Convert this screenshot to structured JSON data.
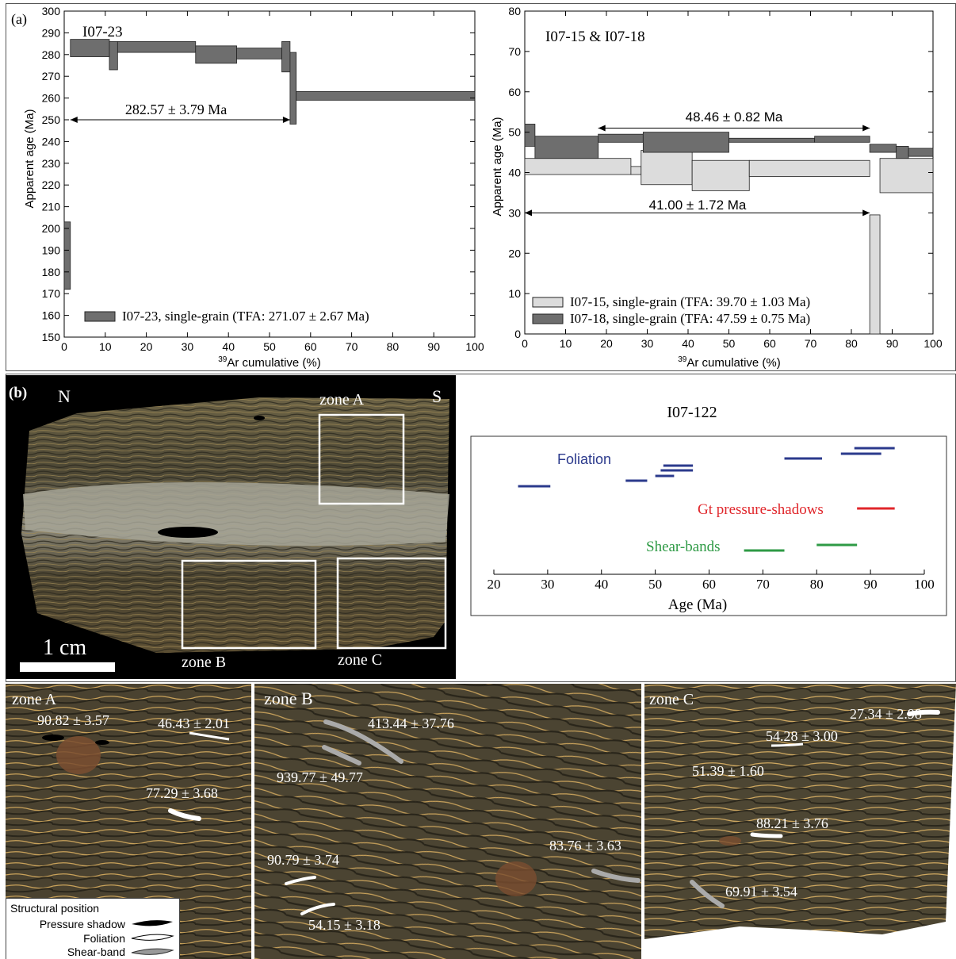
{
  "panel_a": {
    "label": "(a)",
    "left": {
      "sample": "I07-23",
      "plateau": "282.57 ± 3.79 Ma",
      "legend": "I07-23, single-grain (TFA: 271.07 ± 2.67 Ma)",
      "ylabel": "Apparent age (Ma)",
      "xlabel_sup": "39",
      "xlabel": "Ar cumulative (%)",
      "yticks": [
        "150",
        "160",
        "170",
        "180",
        "190",
        "200",
        "210",
        "220",
        "230",
        "240",
        "250",
        "260",
        "270",
        "280",
        "290",
        "300"
      ],
      "xticks": [
        "0",
        "10",
        "20",
        "30",
        "40",
        "50",
        "60",
        "70",
        "80",
        "90",
        "100"
      ]
    },
    "right": {
      "sample": "I07-15 & I07-18",
      "plateau_18": "48.46 ± 0.82 Ma",
      "plateau_15": "41.00 ± 1.72 Ma",
      "legend_15": "I07-15, single-grain (TFA: 39.70 ± 1.03 Ma)",
      "legend_18": "I07-18, single-grain (TFA: 47.59 ± 0.75 Ma)",
      "ylabel": "Apparent age (Ma)",
      "xlabel_sup": "39",
      "xlabel": "Ar cumulative (%)",
      "yticks": [
        "0",
        "10",
        "20",
        "30",
        "40",
        "50",
        "60",
        "70",
        "80"
      ],
      "xticks": [
        "0",
        "10",
        "20",
        "30",
        "40",
        "50",
        "60",
        "70",
        "80",
        "90",
        "100"
      ]
    }
  },
  "panel_b": {
    "label": "(b)",
    "north": "N",
    "south": "S",
    "zone_a": "zone A",
    "zone_b": "zone B",
    "zone_c": "zone C",
    "scale": "1 cm",
    "age_chart": {
      "title": "I07-122",
      "xlabel": "Age (Ma)",
      "xticks": [
        "20",
        "30",
        "40",
        "50",
        "60",
        "70",
        "80",
        "90",
        "100"
      ],
      "foliation_label": "Foliation",
      "gt_label": "Gt pressure-shadows",
      "shear_label": "Shear-bands"
    },
    "zoomA": {
      "title": "zone A",
      "ages": [
        "90.82 ± 3.57",
        "46.43 ± 2.01",
        "77.29 ± 3.68"
      ]
    },
    "zoomB": {
      "title": "zone B",
      "ages": [
        "413.44 ± 37.76",
        "939.77 ± 49.77",
        "90.79 ± 3.74",
        "54.15 ± 3.18",
        "83.76 ± 3.63"
      ]
    },
    "zoomC": {
      "title": "zone C",
      "ages": [
        "27.34 ± 2.98",
        "54.28 ± 3.00",
        "51.39 ± 1.60",
        "88.21 ± 3.76",
        "69.91 ± 3.54"
      ]
    },
    "legend": {
      "title": "Structural position",
      "pressure_shadow": "Pressure shadow",
      "foliation": "Foliation",
      "shear_band": "Shear-band"
    }
  },
  "chart_data": [
    {
      "type": "step",
      "title": "I07-23",
      "xlabel": "39Ar cumulative (%)",
      "ylabel": "Apparent age (Ma)",
      "xlim": [
        0,
        100
      ],
      "ylim": [
        150,
        300
      ],
      "series": [
        {
          "name": "I07-23, single-grain (TFA: 271.07 ± 2.67 Ma)",
          "color": "#6e6e6e",
          "steps": [
            {
              "x0": 0,
              "x1": 1.5,
              "lo": 172,
              "hi": 203
            },
            {
              "x0": 1.5,
              "x1": 11,
              "lo": 279,
              "hi": 287
            },
            {
              "x0": 11,
              "x1": 13,
              "lo": 273,
              "hi": 286
            },
            {
              "x0": 13,
              "x1": 32,
              "lo": 281,
              "hi": 286
            },
            {
              "x0": 32,
              "x1": 42,
              "lo": 276,
              "hi": 284
            },
            {
              "x0": 42,
              "x1": 53,
              "lo": 278,
              "hi": 283
            },
            {
              "x0": 53,
              "x1": 55,
              "lo": 272,
              "hi": 286
            },
            {
              "x0": 55,
              "x1": 56.5,
              "lo": 248,
              "hi": 281
            },
            {
              "x0": 56.5,
              "x1": 100,
              "lo": 259,
              "hi": 263
            }
          ]
        }
      ],
      "plateau": {
        "x0": 1.5,
        "x1": 55,
        "y": 250,
        "label": "282.57 ± 3.79 Ma"
      }
    },
    {
      "type": "step",
      "title": "I07-15 & I07-18",
      "xlabel": "39Ar cumulative (%)",
      "ylabel": "Apparent age (Ma)",
      "xlim": [
        0,
        100
      ],
      "ylim": [
        0,
        80
      ],
      "series": [
        {
          "name": "I07-15, single-grain (TFA: 39.70 ± 1.03 Ma)",
          "color": "#dcdcdc",
          "steps": [
            {
              "x0": 0,
              "x1": 26,
              "lo": 39.5,
              "hi": 43.5
            },
            {
              "x0": 26,
              "x1": 28.5,
              "lo": 39.5,
              "hi": 41.5
            },
            {
              "x0": 28.5,
              "x1": 41,
              "lo": 37,
              "hi": 45.5
            },
            {
              "x0": 41,
              "x1": 55,
              "lo": 35.5,
              "hi": 43
            },
            {
              "x0": 55,
              "x1": 84.5,
              "lo": 39,
              "hi": 43
            },
            {
              "x0": 84.5,
              "x1": 87,
              "lo": 0,
              "hi": 29.5
            },
            {
              "x0": 87,
              "x1": 100,
              "lo": 35,
              "hi": 43.5
            }
          ]
        },
        {
          "name": "I07-18, single-grain (TFA: 47.59 ± 0.75 Ma)",
          "color": "#6e6e6e",
          "steps": [
            {
              "x0": 0,
              "x1": 2.5,
              "lo": 46.5,
              "hi": 52
            },
            {
              "x0": 2.5,
              "x1": 18,
              "lo": 43.5,
              "hi": 49
            },
            {
              "x0": 18,
              "x1": 29,
              "lo": 47.5,
              "hi": 49.5
            },
            {
              "x0": 29,
              "x1": 50,
              "lo": 45,
              "hi": 50
            },
            {
              "x0": 50,
              "x1": 71,
              "lo": 47.5,
              "hi": 48.5
            },
            {
              "x0": 71,
              "x1": 84.5,
              "lo": 47.5,
              "hi": 49
            },
            {
              "x0": 84.5,
              "x1": 91,
              "lo": 45,
              "hi": 47
            },
            {
              "x0": 91,
              "x1": 94,
              "lo": 43.5,
              "hi": 46.5
            },
            {
              "x0": 94,
              "x1": 100,
              "lo": 44,
              "hi": 46
            }
          ]
        }
      ],
      "plateaus": [
        {
          "x0": 18,
          "x1": 84.5,
          "y": 51,
          "label": "48.46 ± 0.82 Ma"
        },
        {
          "x0": 0,
          "x1": 84.5,
          "y": 30,
          "label": "41.00 ± 1.72 Ma"
        }
      ]
    },
    {
      "type": "range",
      "title": "I07-122",
      "xlabel": "Age (Ma)",
      "xlim": [
        20,
        100
      ],
      "series": [
        {
          "name": "Foliation",
          "color": "#2b3a8c",
          "ranges": [
            [
              24.5,
              30.5
            ],
            [
              44.5,
              48.5
            ],
            [
              50,
              53.5
            ],
            [
              51,
              57
            ],
            [
              51.5,
              57
            ],
            [
              74,
              81
            ],
            [
              84.5,
              92
            ],
            [
              87,
              94.5
            ]
          ]
        },
        {
          "name": "Gt pressure-shadows",
          "color": "#e0262b",
          "ranges": [
            [
              87.5,
              94.5
            ]
          ]
        },
        {
          "name": "Shear-bands",
          "color": "#2e9a45",
          "ranges": [
            [
              66.5,
              74
            ],
            [
              80,
              87.5
            ]
          ]
        }
      ]
    }
  ]
}
